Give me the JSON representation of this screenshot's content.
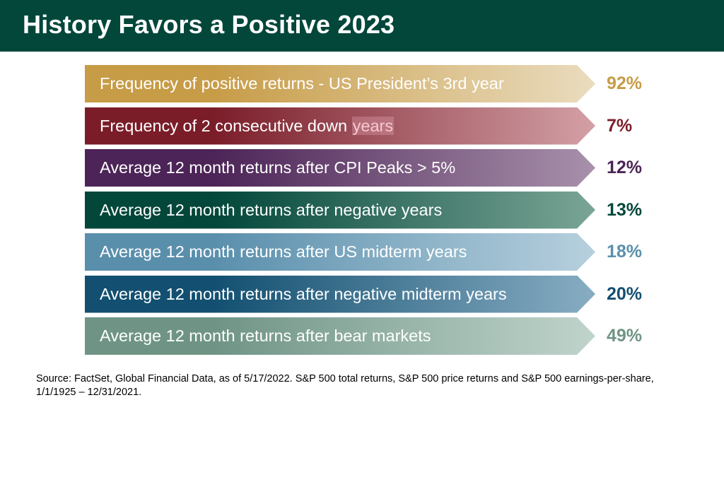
{
  "title": "History Favors a Positive 2023",
  "colors": {
    "header_bg": "#02473a",
    "header_text": "#ffffff"
  },
  "rows": [
    {
      "label": "Frequency of positive returns - US President’s 3rd year",
      "value": "92%",
      "color_start": "#c79c47",
      "color_end": "#eadcbf",
      "value_color": "#c79c47"
    },
    {
      "label": "Frequency of 2 consecutive down ",
      "label_highlight": "years",
      "value": "7%",
      "color_start": "#7a1d29",
      "color_end": "#d3a0a6",
      "value_color": "#7a1d29"
    },
    {
      "label": "Average 12 month returns after CPI Peaks > 5%",
      "value": "12%",
      "color_start": "#4c2457",
      "color_end": "#a891ab",
      "value_color": "#4c2457"
    },
    {
      "label": "Average 12 month returns after negative years",
      "value": "13%",
      "color_start": "#02473a",
      "color_end": "#7aa596",
      "value_color": "#02473a"
    },
    {
      "label": "Average 12 month returns after US midterm years",
      "value": "18%",
      "color_start": "#5a8fac",
      "color_end": "#b7d0de",
      "value_color": "#5a8fac"
    },
    {
      "label": "Average 12 month returns after negative midterm years",
      "value": "20%",
      "color_start": "#124f70",
      "color_end": "#88adc3",
      "value_color": "#124f70"
    },
    {
      "label": "Average 12 month returns after bear markets",
      "value": "49%",
      "color_start": "#6f9485",
      "color_end": "#c0d4cc",
      "value_color": "#6f9485"
    }
  ],
  "footnote": "Source: FactSet, Global Financial Data, as of 5/17/2022. S&P 500 total returns, S&P 500 price returns and S&P 500 earnings-per-share, 1/1/1925 – 12/31/2021."
}
